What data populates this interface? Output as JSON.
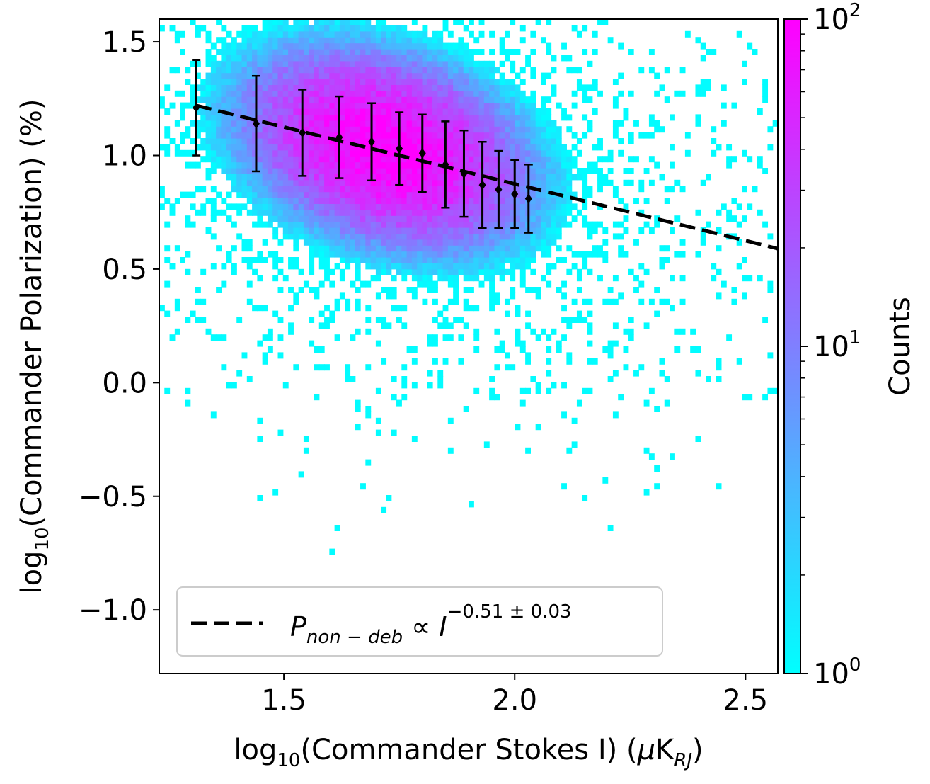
{
  "chart_data": {
    "type": "heatmap",
    "title": "",
    "xlabel": {
      "prefix": "log",
      "sub": "10",
      "main": "(Commander Stokes I) (",
      "mu": "μ",
      "unit": "K",
      "unit_sub": "RJ",
      "close": ")"
    },
    "ylabel": {
      "prefix": "log",
      "sub": "10",
      "main": "(Commander Polarization) (%)"
    },
    "xlim": [
      1.23,
      2.57
    ],
    "ylim": [
      -1.28,
      1.6
    ],
    "x_ticks": [
      {
        "value": 1.5,
        "label": "1.5"
      },
      {
        "value": 2.0,
        "label": "2.0"
      },
      {
        "value": 2.5,
        "label": "2.5"
      }
    ],
    "y_ticks": [
      {
        "value": -1.0,
        "label": "−1.0"
      },
      {
        "value": -0.5,
        "label": "−0.5"
      },
      {
        "value": 0.0,
        "label": "0.0"
      },
      {
        "value": 0.5,
        "label": "0.5"
      },
      {
        "value": 1.0,
        "label": "1.0"
      },
      {
        "value": 1.5,
        "label": "1.5"
      }
    ],
    "density": {
      "description_free": true,
      "center_x": 1.72,
      "center_y": 1.03,
      "sigma_x": 0.19,
      "sigma_y": 0.27,
      "correlation": -0.3,
      "peak_log_count": 2.0,
      "bin_count_x": 120,
      "bin_count_y": 110
    },
    "colorbar": {
      "label": "Counts",
      "scale": "log",
      "range": [
        1,
        100
      ],
      "ticks": [
        {
          "value": 1,
          "base": "10",
          "exp": "0"
        },
        {
          "value": 10,
          "base": "10",
          "exp": "1"
        },
        {
          "value": 100,
          "base": "10",
          "exp": "2"
        }
      ],
      "color_low": "#00ffff",
      "color_high": "#ff00ff"
    },
    "binned_points": [
      {
        "x": 1.31,
        "y": 1.21,
        "err": 0.21
      },
      {
        "x": 1.44,
        "y": 1.14,
        "err": 0.21
      },
      {
        "x": 1.54,
        "y": 1.1,
        "err": 0.19
      },
      {
        "x": 1.62,
        "y": 1.08,
        "err": 0.18
      },
      {
        "x": 1.69,
        "y": 1.06,
        "err": 0.17
      },
      {
        "x": 1.75,
        "y": 1.03,
        "err": 0.16
      },
      {
        "x": 1.8,
        "y": 1.01,
        "err": 0.17
      },
      {
        "x": 1.85,
        "y": 0.96,
        "err": 0.19
      },
      {
        "x": 1.89,
        "y": 0.92,
        "err": 0.19
      },
      {
        "x": 1.93,
        "y": 0.87,
        "err": 0.19
      },
      {
        "x": 1.965,
        "y": 0.85,
        "err": 0.17
      },
      {
        "x": 2.0,
        "y": 0.83,
        "err": 0.15
      },
      {
        "x": 2.03,
        "y": 0.81,
        "err": 0.15
      }
    ],
    "fit_line": {
      "x": [
        1.31,
        2.57
      ],
      "y": [
        1.22,
        0.59
      ],
      "color": "#000000",
      "style": "dashed"
    },
    "legend": {
      "placement": "lower-left",
      "symbol": "P",
      "subscript": "non − deb",
      "relation": " ∝ ",
      "variable": "I",
      "superscript": "−0.51 ± 0.03"
    }
  }
}
